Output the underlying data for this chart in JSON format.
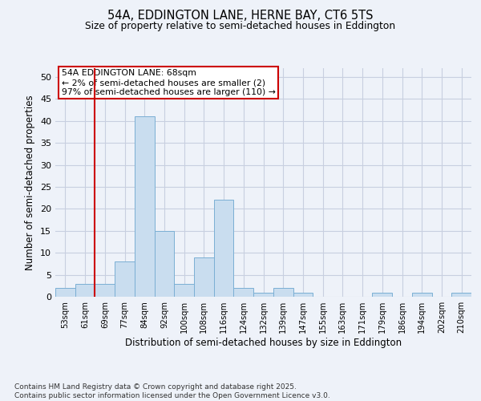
{
  "title1": "54A, EDDINGTON LANE, HERNE BAY, CT6 5TS",
  "title2": "Size of property relative to semi-detached houses in Eddington",
  "xlabel": "Distribution of semi-detached houses by size in Eddington",
  "ylabel": "Number of semi-detached properties",
  "categories": [
    "53sqm",
    "61sqm",
    "69sqm",
    "77sqm",
    "84sqm",
    "92sqm",
    "100sqm",
    "108sqm",
    "116sqm",
    "124sqm",
    "132sqm",
    "139sqm",
    "147sqm",
    "155sqm",
    "163sqm",
    "171sqm",
    "179sqm",
    "186sqm",
    "194sqm",
    "202sqm",
    "210sqm"
  ],
  "values": [
    2,
    3,
    3,
    8,
    41,
    15,
    3,
    9,
    22,
    2,
    1,
    2,
    1,
    0,
    0,
    0,
    1,
    0,
    1,
    0,
    1
  ],
  "bar_color": "#c9ddef",
  "bar_edge_color": "#7bafd4",
  "vline_x_index": 2,
  "vline_color": "#cc0000",
  "vline_label_title": "54A EDDINGTON LANE: 68sqm",
  "vline_label_line2": "← 2% of semi-detached houses are smaller (2)",
  "vline_label_line3": "97% of semi-detached houses are larger (110) →",
  "annotation_box_color": "#cc0000",
  "annotation_bg": "#ffffff",
  "ylim": [
    0,
    52
  ],
  "yticks": [
    0,
    5,
    10,
    15,
    20,
    25,
    30,
    35,
    40,
    45,
    50
  ],
  "footer": "Contains HM Land Registry data © Crown copyright and database right 2025.\nContains public sector information licensed under the Open Government Licence v3.0.",
  "background_color": "#eef2f9",
  "plot_bg_color": "#eef2f9",
  "grid_color": "#c8cfe0"
}
